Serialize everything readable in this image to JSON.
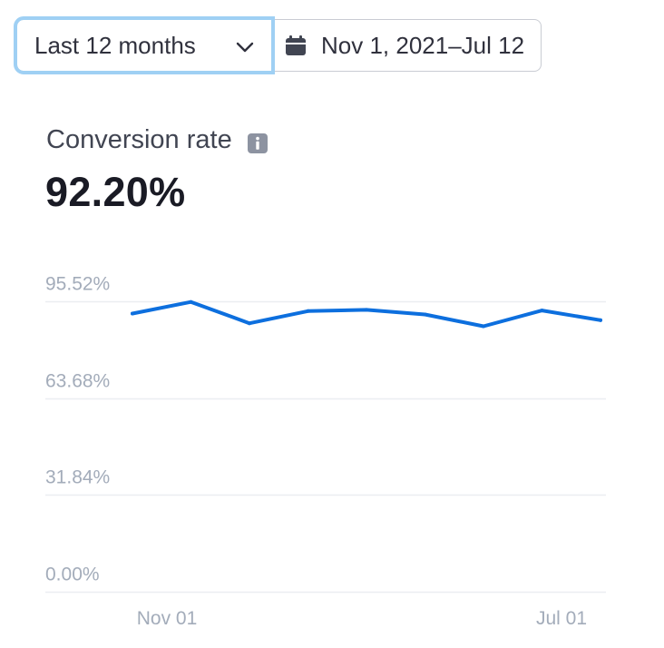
{
  "toolbar": {
    "range_label": "Last 12 months",
    "date_range_label": "Nov 1, 2021–Jul 12"
  },
  "metric": {
    "title": "Conversion rate",
    "value": "92.20%"
  },
  "icons": {
    "range_dropdown": "chevron-down-icon",
    "date_range": "calendar-icon",
    "metric_info": "info-icon"
  },
  "colors": {
    "series_line": "#0d6fde",
    "focus_ring": "#9fd0f4",
    "gridline": "#ebeef1",
    "tick_label": "#a3acba"
  },
  "chart_data": {
    "type": "line",
    "y_ticks": [
      "95.52%",
      "63.68%",
      "31.84%",
      "0.00%"
    ],
    "y_tick_values": [
      95.52,
      63.68,
      31.84,
      0
    ],
    "x_tick_labels": [
      "Nov 01",
      "Jul 01"
    ],
    "ylim": [
      0,
      95.52
    ],
    "grid": true,
    "series": [
      {
        "values": [
          91.5,
          95.3,
          88.3,
          92.3,
          92.7,
          91.2,
          87.3,
          92.5,
          89.3
        ]
      }
    ]
  }
}
